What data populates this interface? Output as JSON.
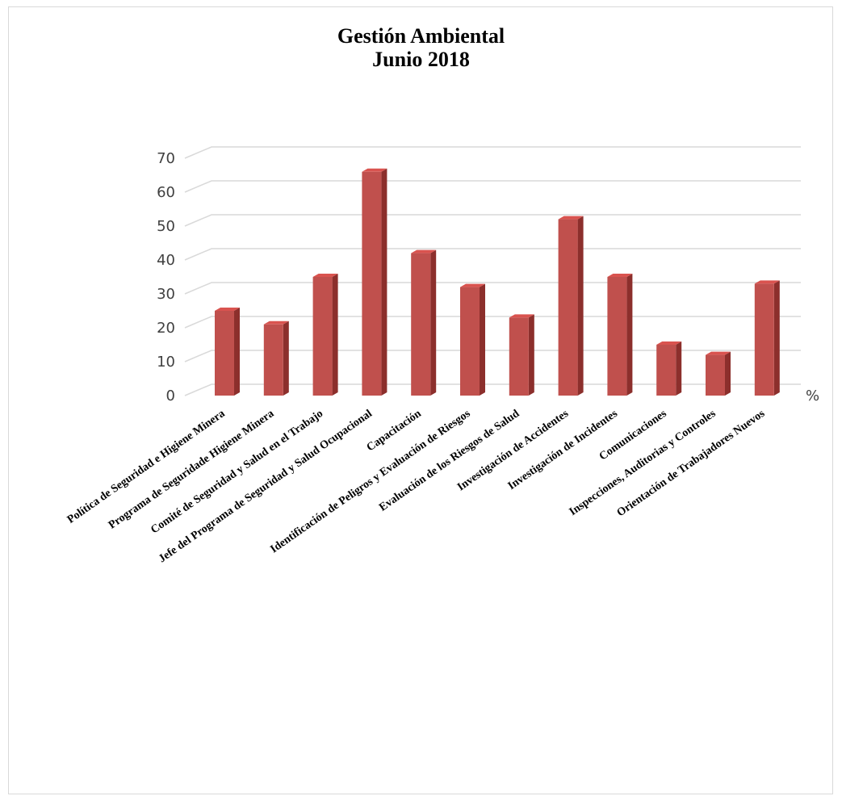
{
  "chart_data": {
    "type": "bar",
    "title_lines": [
      "Gestión Ambiental",
      "Junio 2018"
    ],
    "categories": [
      "Política de Seguridad e Higiene Minera",
      "Programa de Seguridade Higiene Minera",
      "Comité de Seguridad y Salud en el Trabajo",
      "Jefe del Programa de Seguridad y Salud Ocupacional",
      "Capacitación",
      "Identificación de Peligros y Evaluación de Riesgos",
      "Evaluación de los Riesgos de Salud",
      "Investigación de Accidentes",
      "Investigación de Incidentes",
      "Comunicaciones",
      "Inspecciones, Auditorias y Controles",
      "Orientación de Trabajadores Nuevos"
    ],
    "values": [
      25,
      21,
      35,
      66,
      42,
      32,
      23,
      52,
      35,
      15,
      12,
      33
    ],
    "ylim": [
      0,
      70
    ],
    "yticks": [
      0,
      10,
      20,
      30,
      40,
      50,
      60,
      70
    ],
    "unit_label": "%",
    "grid": true,
    "bar_color": "#c0504d",
    "bar_side_color": "#8c2f2c",
    "bar_top_color": "#d9534f"
  }
}
